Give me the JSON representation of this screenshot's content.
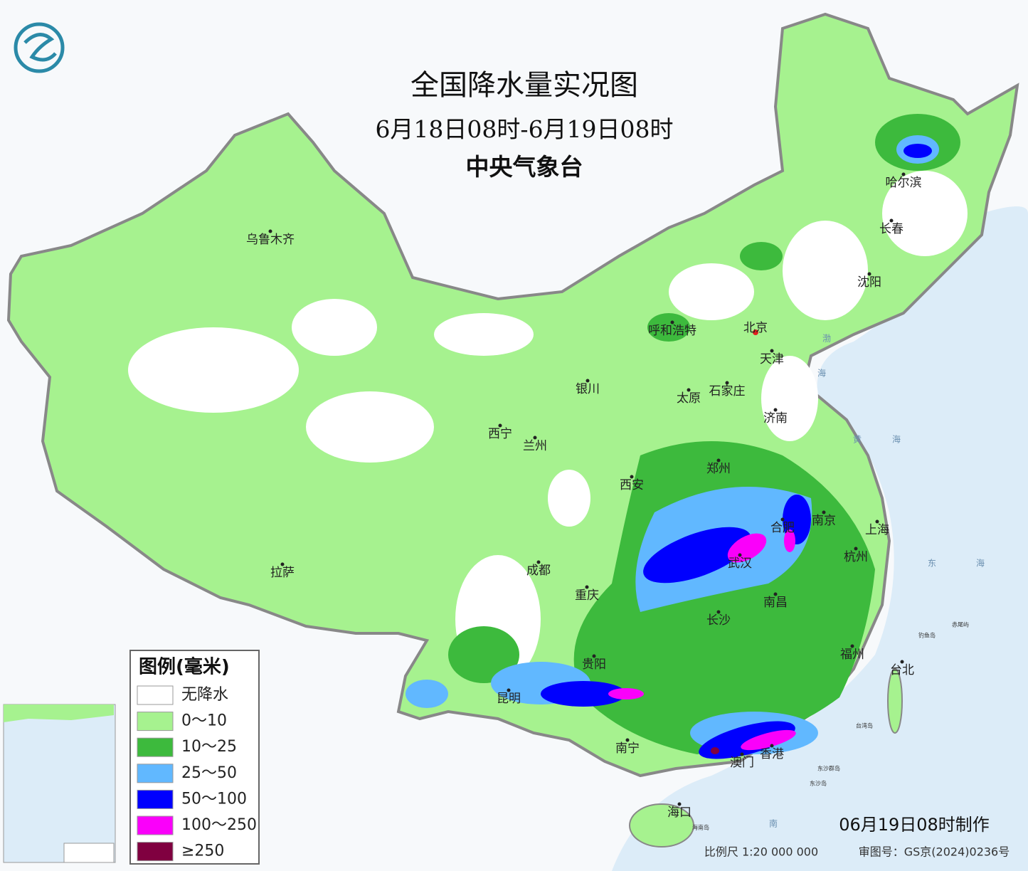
{
  "header": {
    "title": "全国降水量实况图",
    "period": "6月18日08时-6月19日08时",
    "agency": "中央气象台"
  },
  "legend": {
    "title": "图例(毫米)",
    "items": [
      {
        "label": "无降水",
        "color": "#ffffff"
      },
      {
        "label": "0～10",
        "color": "#a6f28f"
      },
      {
        "label": "10～25",
        "color": "#3dba3d"
      },
      {
        "label": "25～50",
        "color": "#61b8ff"
      },
      {
        "label": "50～100",
        "color": "#0000fe"
      },
      {
        "label": "100～250",
        "color": "#fa00fa"
      },
      {
        "label": "≥250",
        "color": "#800040"
      }
    ]
  },
  "cities": [
    "乌鲁木齐",
    "拉萨",
    "西宁",
    "兰州",
    "银川",
    "呼和浩特",
    "北京",
    "天津",
    "石家庄",
    "太原",
    "济南",
    "郑州",
    "西安",
    "成都",
    "重庆",
    "贵阳",
    "昆明",
    "南宁",
    "海口",
    "长沙",
    "武汉",
    "南昌",
    "合肥",
    "南京",
    "上海",
    "杭州",
    "福州",
    "台北",
    "香港",
    "澳门",
    "哈尔滨",
    "长春",
    "沈阳"
  ],
  "seas": [
    "渤",
    "海",
    "黄",
    "海",
    "东",
    "海",
    "南"
  ],
  "islands": [
    "钓鱼岛",
    "赤尾屿",
    "台湾岛",
    "东沙群岛",
    "东沙岛",
    "海南岛"
  ],
  "footer": {
    "made": "06月19日08时制作",
    "scale": "比例尺 1:20 000 000",
    "review": "审图号：GS京(2024)0236号"
  }
}
